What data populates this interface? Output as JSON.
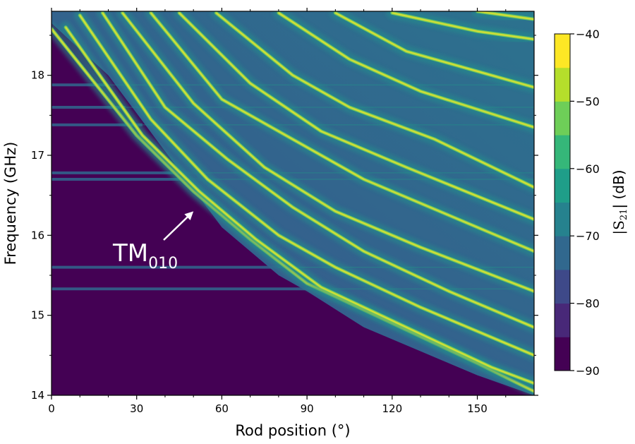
{
  "chart_data": {
    "type": "heatmap",
    "title": "",
    "xlabel": "Rod position (°)",
    "ylabel": "Frequency (GHz)",
    "xlim": [
      0,
      170
    ],
    "ylim": [
      14,
      18.8
    ],
    "x_ticks": [
      0,
      30,
      60,
      90,
      120,
      150
    ],
    "x_tick_labels": [
      "0",
      "30",
      "60",
      "90",
      "120",
      "150"
    ],
    "y_ticks": [
      14,
      15,
      16,
      17,
      18
    ],
    "y_tick_labels": [
      "14",
      "15",
      "16",
      "17",
      "18"
    ],
    "colorbar": {
      "label": "|S21| (dB)",
      "label_main": "|S",
      "label_sub": "21",
      "label_close": "| (dB)",
      "range": [
        -90,
        -40
      ],
      "ticks": [
        -40,
        -50,
        -60,
        -70,
        -80,
        -90
      ],
      "tick_labels": [
        "−40",
        "−50",
        "−60",
        "−70",
        "−80",
        "−90"
      ],
      "levels": 10,
      "colormap": "viridis"
    },
    "annotations": [
      {
        "text_main": "TM",
        "text_sub": "010",
        "points_to": {
          "x": 50,
          "y": 16.3
        }
      }
    ],
    "cutoff_curve": [
      {
        "x": 0,
        "y": 18.65
      },
      {
        "x": 20,
        "y": 18.0
      },
      {
        "x": 40,
        "y": 17.05
      },
      {
        "x": 60,
        "y": 16.1
      },
      {
        "x": 80,
        "y": 15.5
      },
      {
        "x": 90,
        "y": 15.3
      },
      {
        "x": 110,
        "y": 14.85
      },
      {
        "x": 130,
        "y": 14.55
      },
      {
        "x": 150,
        "y": 14.25
      },
      {
        "x": 170,
        "y": 14.0
      }
    ],
    "mode_curves": [
      {
        "name": "",
        "points": [
          {
            "x": 0,
            "y": 18.58
          },
          {
            "x": 30,
            "y": 17.25
          },
          {
            "x": 50,
            "y": 16.55
          },
          {
            "x": 70,
            "y": 15.95
          },
          {
            "x": 90,
            "y": 15.4
          },
          {
            "x": 120,
            "y": 14.9
          },
          {
            "x": 150,
            "y": 14.4
          },
          {
            "x": 170,
            "y": 14.05
          }
        ]
      },
      {
        "name": "",
        "points": [
          {
            "x": 5,
            "y": 18.6
          },
          {
            "x": 32,
            "y": 17.25
          },
          {
            "x": 52,
            "y": 16.55
          },
          {
            "x": 72,
            "y": 15.95
          },
          {
            "x": 95,
            "y": 15.35
          },
          {
            "x": 125,
            "y": 14.85
          },
          {
            "x": 155,
            "y": 14.35
          },
          {
            "x": 170,
            "y": 14.15
          }
        ]
      },
      {
        "name": "",
        "points": [
          {
            "x": 10,
            "y": 18.75
          },
          {
            "x": 35,
            "y": 17.45
          },
          {
            "x": 55,
            "y": 16.7
          },
          {
            "x": 80,
            "y": 16.0
          },
          {
            "x": 100,
            "y": 15.6
          },
          {
            "x": 130,
            "y": 15.1
          },
          {
            "x": 170,
            "y": 14.5
          }
        ]
      },
      {
        "name": "",
        "points": [
          {
            "x": 18,
            "y": 18.78
          },
          {
            "x": 40,
            "y": 17.6
          },
          {
            "x": 62,
            "y": 16.95
          },
          {
            "x": 85,
            "y": 16.35
          },
          {
            "x": 110,
            "y": 15.8
          },
          {
            "x": 140,
            "y": 15.3
          },
          {
            "x": 170,
            "y": 14.85
          }
        ]
      },
      {
        "name": "",
        "points": [
          {
            "x": 25,
            "y": 18.78
          },
          {
            "x": 50,
            "y": 17.65
          },
          {
            "x": 75,
            "y": 16.85
          },
          {
            "x": 100,
            "y": 16.3
          },
          {
            "x": 130,
            "y": 15.85
          },
          {
            "x": 170,
            "y": 15.3
          }
        ]
      },
      {
        "name": "",
        "points": [
          {
            "x": 35,
            "y": 18.78
          },
          {
            "x": 60,
            "y": 17.7
          },
          {
            "x": 85,
            "y": 17.2
          },
          {
            "x": 110,
            "y": 16.7
          },
          {
            "x": 140,
            "y": 16.25
          },
          {
            "x": 170,
            "y": 15.8
          }
        ]
      },
      {
        "name": "",
        "points": [
          {
            "x": 45,
            "y": 18.78
          },
          {
            "x": 70,
            "y": 17.9
          },
          {
            "x": 95,
            "y": 17.3
          },
          {
            "x": 125,
            "y": 16.85
          },
          {
            "x": 170,
            "y": 16.2
          }
        ]
      },
      {
        "name": "",
        "points": [
          {
            "x": 58,
            "y": 18.78
          },
          {
            "x": 85,
            "y": 18.0
          },
          {
            "x": 105,
            "y": 17.6
          },
          {
            "x": 135,
            "y": 17.2
          },
          {
            "x": 170,
            "y": 16.6
          }
        ]
      },
      {
        "name": "",
        "points": [
          {
            "x": 80,
            "y": 18.78
          },
          {
            "x": 105,
            "y": 18.2
          },
          {
            "x": 130,
            "y": 17.8
          },
          {
            "x": 170,
            "y": 17.35
          }
        ]
      },
      {
        "name": "",
        "points": [
          {
            "x": 100,
            "y": 18.78
          },
          {
            "x": 125,
            "y": 18.3
          },
          {
            "x": 150,
            "y": 18.05
          },
          {
            "x": 170,
            "y": 17.85
          }
        ]
      },
      {
        "name": "",
        "points": [
          {
            "x": 120,
            "y": 18.78
          },
          {
            "x": 150,
            "y": 18.55
          },
          {
            "x": 170,
            "y": 18.45
          }
        ]
      },
      {
        "name": "",
        "points": [
          {
            "x": 150,
            "y": 18.8
          },
          {
            "x": 170,
            "y": 18.7
          }
        ]
      }
    ],
    "horizontal_features": [
      {
        "y": 15.33,
        "x_end": 90
      },
      {
        "y": 15.6,
        "x_end": 80
      },
      {
        "y": 16.7,
        "x_end": 55
      },
      {
        "y": 16.78,
        "x_end": 52
      },
      {
        "y": 17.38,
        "x_end": 32
      },
      {
        "y": 17.6,
        "x_end": 26
      },
      {
        "y": 17.88,
        "x_end": 20
      }
    ]
  }
}
